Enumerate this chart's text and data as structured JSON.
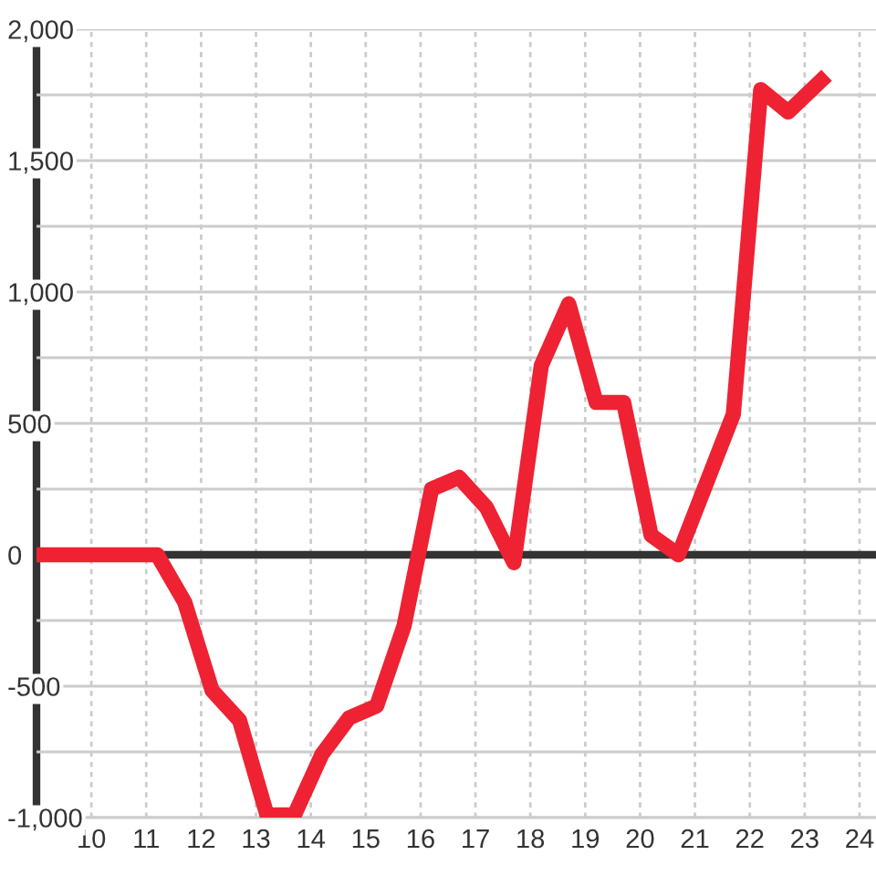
{
  "chart_data": {
    "type": "line",
    "x": [
      9.0,
      11.2,
      11.7,
      12.2,
      12.7,
      13.2,
      13.7,
      14.2,
      14.7,
      15.2,
      15.7,
      16.2,
      16.7,
      17.2,
      17.7,
      18.2,
      18.7,
      19.2,
      19.7,
      20.2,
      20.7,
      21.7,
      22.2,
      22.7,
      23.3
    ],
    "values": [
      0,
      0,
      -180,
      -516,
      -630,
      -990,
      -990,
      -760,
      -620,
      -575,
      -270,
      250,
      295,
      180,
      -30,
      720,
      955,
      580,
      580,
      75,
      0,
      535,
      1770,
      1685,
      1805
    ],
    "color": "#ee2233",
    "line_style": "solid",
    "marker": "none",
    "xlim": [
      9.0,
      24.3
    ],
    "xticks": [
      10,
      11,
      12,
      13,
      14,
      15,
      16,
      17,
      18,
      19,
      20,
      21,
      22,
      23,
      24
    ],
    "ylim": [
      -1000,
      2000
    ],
    "yticks": [
      {
        "value": -1000,
        "label": "-1,000"
      },
      {
        "value": -750,
        "label": null
      },
      {
        "value": -500,
        "label": "-500"
      },
      {
        "value": -250,
        "label": null
      },
      0,
      {
        "value": 250,
        "label": null
      },
      500,
      {
        "value": 750,
        "label": null
      },
      {
        "value": 1000,
        "label": "1,000"
      },
      {
        "value": 1250,
        "label": null
      },
      {
        "value": 1500,
        "label": "1,500"
      },
      {
        "value": 1750,
        "label": null
      },
      {
        "value": 2000,
        "label": "2,000"
      }
    ],
    "grid": true,
    "ref_lines": [
      {
        "axis": "y",
        "value": 0,
        "color": "#333333"
      }
    ]
  }
}
